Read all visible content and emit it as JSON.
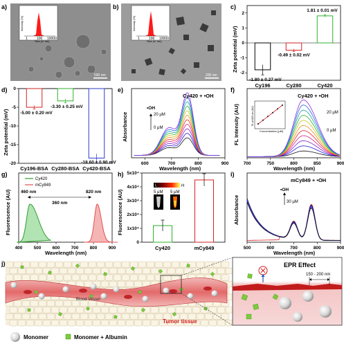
{
  "panels": {
    "a": {
      "label": "a)",
      "scale": "500 nm",
      "inset_x": "Size (d. nm)",
      "inset_y": "Intensity (%)",
      "inset_ticks": [
        "1",
        "100",
        "10000"
      ]
    },
    "b": {
      "label": "b)",
      "scale": "200 nm",
      "inset_x": "Size (d. nm)",
      "inset_y": "Intensity (%)",
      "inset_ticks": [
        "1",
        "100",
        "10000"
      ]
    },
    "c": {
      "label": "c)"
    },
    "d": {
      "label": "d)"
    },
    "e": {
      "label": "e)",
      "title": "Cy420 + •OH",
      "oh": "•OH",
      "hi": "20 μM",
      "lo": "0 μM"
    },
    "f": {
      "label": "f)",
      "title": "Cy420 + •OH",
      "hi": "20 μM",
      "lo": "0 μM",
      "inset_x": "Concentration (μM)",
      "inset_y": "FL at 820 nm (AU)"
    },
    "g": {
      "label": "g)",
      "peak1": "460 nm",
      "peak2": "820 nm",
      "shift": "360 nm"
    },
    "h": {
      "label": "h)",
      "grad_lo": "L",
      "grad_hi": "H",
      "tube1": "5 μM",
      "tube2": "5 μM"
    },
    "i": {
      "label": "i)",
      "title": "mCy849 + •OH",
      "oh": "•OH",
      "hi": "30 μM"
    },
    "j": {
      "label": "j)",
      "blood": "Blood Vessel",
      "tumor": "Tumor tissue",
      "epr": "EPR Effect",
      "gap": "150 - 200 nm",
      "leg1": "Monomer",
      "leg2": "Monomer + Albumin"
    }
  },
  "chart_data": [
    {
      "panel": "c",
      "type": "bar",
      "ylabel": "Zeta potential (mV)",
      "ylim": [
        -2.5,
        2.5
      ],
      "yticks": [
        -2,
        -1,
        0,
        1,
        2
      ],
      "categories": [
        "Cy196",
        "Cy280",
        "Cy420"
      ],
      "values": [
        -1.8,
        -0.49,
        1.81
      ],
      "errors": [
        0.27,
        0.02,
        0.01
      ],
      "labels": [
        "-1.80 ± 0.27 mV",
        "-0.49 ± 0.02 mV",
        "1.81 ± 0.01 mV"
      ],
      "colors": [
        "#000000",
        "#d62020",
        "#2bb02b"
      ]
    },
    {
      "panel": "d",
      "type": "bar",
      "ylabel": "Zeta potential (mV)",
      "ylim": [
        -20,
        0
      ],
      "yticks": [
        0,
        -5,
        -10,
        -15,
        -20
      ],
      "categories": [
        "Cy196-BSA",
        "Cy280-BSA",
        "Cy420-BSA"
      ],
      "values": [
        -5.0,
        -3.3,
        -18.6
      ],
      "errors": [
        0.2,
        0.25,
        0.9
      ],
      "labels": [
        "-5.00 ± 0.20 mV",
        "-3.30 ± 0.25 mV",
        "-18.60 ± 0.90 mV"
      ],
      "colors": [
        "#d62020",
        "#2bb02b",
        "#2a3ad0"
      ]
    },
    {
      "panel": "e",
      "type": "line",
      "xlabel": "Wavelength (nm)",
      "ylabel": "Absorbance",
      "xlim": [
        550,
        900
      ],
      "xticks": [
        600,
        700,
        800,
        900
      ],
      "peak_nm": 760,
      "shoulder_nm": 690,
      "peak_range": [
        0.28,
        1.0
      ]
    },
    {
      "panel": "f",
      "type": "line",
      "xlabel": "Wavelength (nm)",
      "ylabel": "FL Intensity (AU)",
      "xlim": [
        700,
        900
      ],
      "xticks": [
        700,
        750,
        800,
        850,
        900
      ],
      "peak_nm": 820,
      "peak_range": [
        0.1,
        1.0
      ]
    },
    {
      "panel": "g",
      "type": "line",
      "xlabel": "Wavelength (nm)",
      "ylabel": "Fluorescence (AU)",
      "xlim": [
        400,
        900
      ],
      "xticks": [
        400,
        500,
        600,
        700,
        800,
        900
      ],
      "series": [
        {
          "name": "Cy420",
          "color": "#2ca02c",
          "peak": 460
        },
        {
          "name": "mCy849",
          "color": "#e05050",
          "peak": 820
        }
      ]
    },
    {
      "panel": "h",
      "type": "bar",
      "ylabel": "Fluorescence (AU)",
      "ylim": [
        0,
        50000
      ],
      "yticks": [
        0,
        10000,
        20000,
        30000,
        40000,
        50000
      ],
      "ytick_labels": [
        "0",
        "1x10⁴",
        "2x10⁴",
        "3x10⁴",
        "4x10⁴",
        "5x10⁴"
      ],
      "categories": [
        "Cy420",
        "mCy849"
      ],
      "values": [
        12000,
        45000
      ],
      "errors": [
        4000,
        4500
      ],
      "colors": [
        "#2bb02b",
        "#d62020"
      ]
    },
    {
      "panel": "i",
      "type": "line",
      "xlabel": "Wavelength (nm)",
      "ylabel": "Absorbance",
      "xlim": [
        500,
        900
      ],
      "xticks": [
        500,
        600,
        700,
        800,
        900
      ],
      "peak_nm": 775,
      "shoulder_nm": 700
    }
  ]
}
